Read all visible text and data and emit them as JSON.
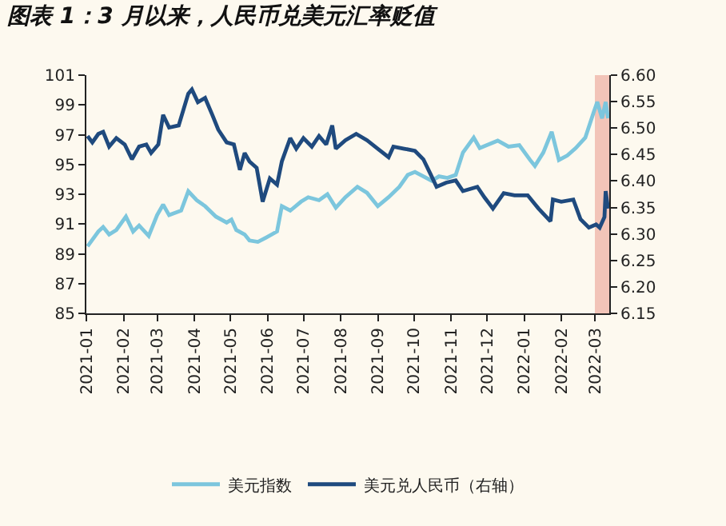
{
  "chart_data": {
    "type": "line",
    "title": "图表 1：3 月以来，人民币兑美元汇率贬值",
    "xlim": [
      "2021-01-01",
      "2022-03-13"
    ],
    "xticks": [
      "2021-01",
      "2021-02",
      "2021-03",
      "2021-04",
      "2021-05",
      "2021-06",
      "2021-07",
      "2021-08",
      "2021-09",
      "2021-10",
      "2021-11",
      "2021-12",
      "2022-01",
      "2022-02",
      "2022-03"
    ],
    "ylim": [
      85,
      101
    ],
    "yticks": [
      85,
      87,
      89,
      91,
      93,
      95,
      97,
      99,
      101
    ],
    "y2lim": [
      6.15,
      6.6
    ],
    "y2ticks": [
      6.15,
      {
        "value": 6.2,
        "label": "6.20"
      },
      6.25,
      {
        "value": 6.3,
        "label": "6.30"
      },
      6.35,
      {
        "value": 6.4,
        "label": "6.40"
      },
      6.45,
      {
        "value": 6.5,
        "label": "6.50"
      },
      6.55,
      {
        "value": 6.6,
        "label": "6.60"
      }
    ],
    "legend": "bottom",
    "bands": [
      {
        "axis": "x",
        "from": "2022-03-01",
        "to": "2022-03-13",
        "color": "#f2c4b8"
      }
    ],
    "series": [
      {
        "name": "美元指数",
        "color": "#7cc6dd",
        "axis": "y",
        "x": [
          "2021-01-02",
          "2021-01-11",
          "2021-01-15",
          "2021-01-20",
          "2021-01-26",
          "2021-02-03",
          "2021-02-09",
          "2021-02-14",
          "2021-02-22",
          "2021-03-01",
          "2021-03-06",
          "2021-03-11",
          "2021-03-21",
          "2021-03-27",
          "2021-04-03",
          "2021-04-10",
          "2021-04-19",
          "2021-04-28",
          "2021-05-02",
          "2021-05-06",
          "2021-05-13",
          "2021-05-17",
          "2021-05-24",
          "2021-05-31",
          "2021-06-09",
          "2021-06-13",
          "2021-06-20",
          "2021-06-29",
          "2021-07-05",
          "2021-07-14",
          "2021-07-21",
          "2021-07-28",
          "2021-08-05",
          "2021-08-15",
          "2021-08-23",
          "2021-09-01",
          "2021-09-10",
          "2021-09-19",
          "2021-09-26",
          "2021-10-02",
          "2021-10-09",
          "2021-10-16",
          "2021-10-22",
          "2021-10-29",
          "2021-11-05",
          "2021-11-11",
          "2021-11-20",
          "2021-11-25",
          "2021-12-01",
          "2021-12-10",
          "2021-12-19",
          "2021-12-28",
          "2022-01-06",
          "2022-01-10",
          "2022-01-17",
          "2022-01-24",
          "2022-01-30",
          "2022-02-06",
          "2022-02-13",
          "2022-02-21",
          "2022-02-28",
          "2022-03-03",
          "2022-03-07",
          "2022-03-10",
          "2022-03-12"
        ],
        "values": [
          89.5,
          90.5,
          90.8,
          90.3,
          90.6,
          91.5,
          90.5,
          90.9,
          90.2,
          91.6,
          92.3,
          91.6,
          91.9,
          93.2,
          92.6,
          92.2,
          91.5,
          91.1,
          91.3,
          90.6,
          90.3,
          89.9,
          89.8,
          90.1,
          90.5,
          92.2,
          91.9,
          92.5,
          92.8,
          92.6,
          93.0,
          92.1,
          92.8,
          93.5,
          93.1,
          92.2,
          92.8,
          93.5,
          94.3,
          94.5,
          94.2,
          93.9,
          94.2,
          94.1,
          94.3,
          95.8,
          96.8,
          96.1,
          96.3,
          96.6,
          96.2,
          96.3,
          95.3,
          94.9,
          95.8,
          97.2,
          95.3,
          95.6,
          96.1,
          96.8,
          98.5,
          99.2,
          98.1,
          99.2,
          98.1
        ]
      },
      {
        "name": "美元兑人民币（右轴）",
        "color": "#1f4a7e",
        "axis": "y2",
        "x": [
          "2021-01-02",
          "2021-01-06",
          "2021-01-11",
          "2021-01-15",
          "2021-01-20",
          "2021-01-26",
          "2021-02-02",
          "2021-02-08",
          "2021-02-14",
          "2021-02-20",
          "2021-02-24",
          "2021-03-02",
          "2021-03-06",
          "2021-03-11",
          "2021-03-19",
          "2021-03-27",
          "2021-03-30",
          "2021-04-04",
          "2021-04-10",
          "2021-04-16",
          "2021-04-21",
          "2021-04-28",
          "2021-05-04",
          "2021-05-09",
          "2021-05-13",
          "2021-05-17",
          "2021-05-23",
          "2021-05-28",
          "2021-06-03",
          "2021-06-09",
          "2021-06-13",
          "2021-06-20",
          "2021-06-25",
          "2021-07-01",
          "2021-07-08",
          "2021-07-14",
          "2021-07-20",
          "2021-07-25",
          "2021-07-28",
          "2021-08-05",
          "2021-08-14",
          "2021-08-23",
          "2021-09-01",
          "2021-09-10",
          "2021-09-14",
          "2021-09-23",
          "2021-10-02",
          "2021-10-09",
          "2021-10-15",
          "2021-10-20",
          "2021-10-28",
          "2021-11-05",
          "2021-11-11",
          "2021-11-23",
          "2021-11-29",
          "2021-12-06",
          "2021-12-15",
          "2021-12-24",
          "2022-01-04",
          "2022-01-13",
          "2022-01-23",
          "2022-01-25",
          "2022-02-01",
          "2022-02-11",
          "2022-02-17",
          "2022-02-24",
          "2022-03-02",
          "2022-03-05",
          "2022-03-09",
          "2022-03-10",
          "2022-03-12"
        ],
        "values": [
          6.485,
          6.473,
          6.489,
          6.493,
          6.465,
          6.481,
          6.469,
          6.441,
          6.465,
          6.469,
          6.453,
          6.469,
          6.525,
          6.501,
          6.505,
          6.565,
          6.573,
          6.549,
          6.557,
          6.525,
          6.497,
          6.473,
          6.469,
          6.421,
          6.453,
          6.437,
          6.425,
          6.361,
          6.405,
          6.393,
          6.437,
          6.481,
          6.461,
          6.481,
          6.465,
          6.485,
          6.469,
          6.505,
          6.461,
          6.477,
          6.489,
          6.477,
          6.461,
          6.445,
          6.465,
          6.461,
          6.457,
          6.441,
          6.413,
          6.389,
          6.397,
          6.401,
          6.381,
          6.389,
          6.369,
          6.348,
          6.377,
          6.373,
          6.373,
          6.348,
          6.324,
          6.365,
          6.361,
          6.365,
          6.328,
          6.312,
          6.318,
          6.312,
          6.332,
          6.381,
          6.348
        ]
      }
    ]
  }
}
